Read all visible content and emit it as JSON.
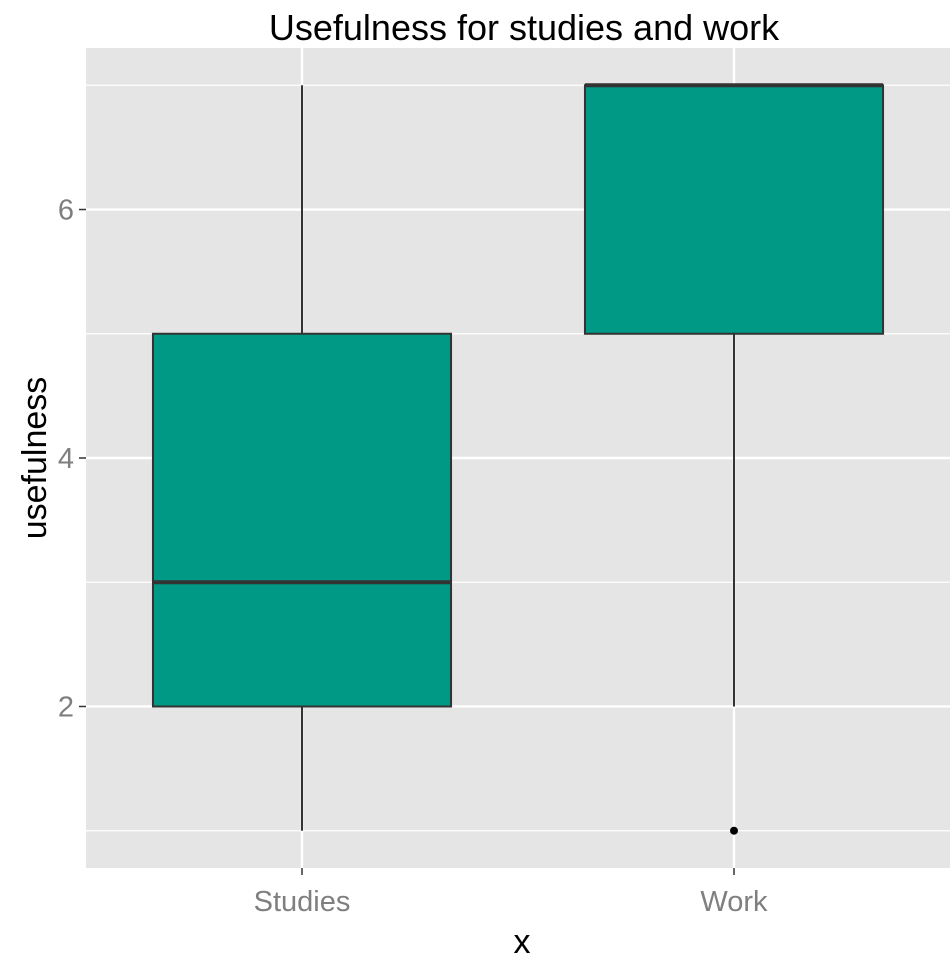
{
  "chart_data": {
    "type": "boxplot",
    "title": "Usefulness for studies and work",
    "xlabel": "x",
    "ylabel": "usefulness",
    "categories": [
      "Studies",
      "Work"
    ],
    "boxes": [
      {
        "category": "Studies",
        "whisker_low": 1,
        "q1": 2,
        "median": 3,
        "q3": 5,
        "whisker_high": 7,
        "outliers": []
      },
      {
        "category": "Work",
        "whisker_low": 2,
        "q1": 5,
        "median": 7,
        "q3": 7,
        "whisker_high": 7,
        "outliers": [
          1
        ]
      }
    ],
    "yticks": [
      2,
      4,
      6
    ],
    "ylim": [
      0.7,
      7.3
    ],
    "grid": true,
    "box_fill": "#009985",
    "panel_background": "#e5e5e5",
    "grid_color": "#ffffff",
    "line_color": "#333333"
  }
}
